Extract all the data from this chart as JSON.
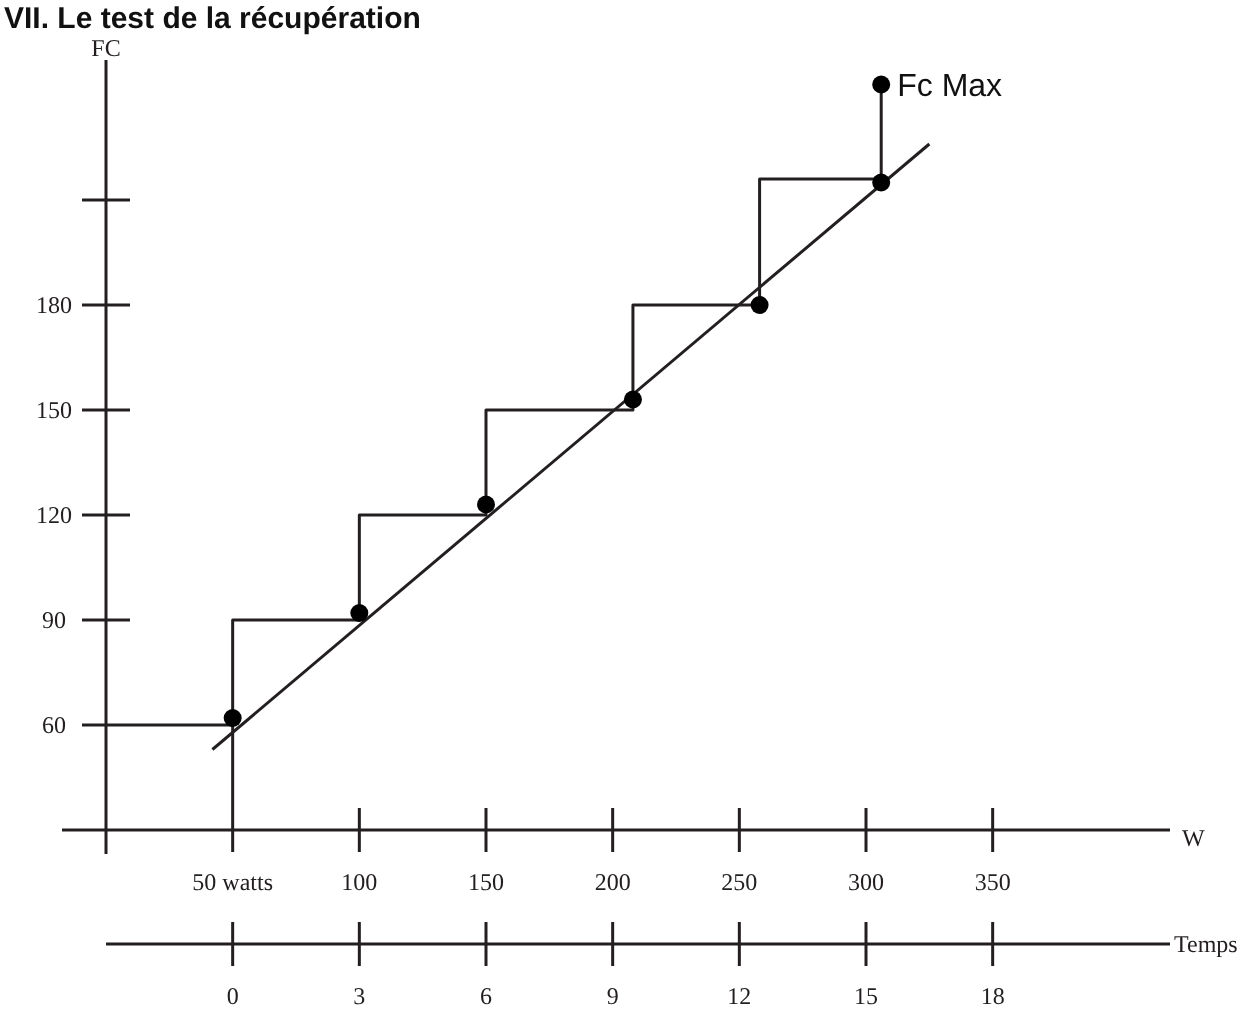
{
  "chart_data": {
    "type": "line",
    "title": "VII. Le test de la récupération",
    "xlabel": "W",
    "ylabel": "FC",
    "x2label": "Temps",
    "xlim": [
      0,
      420
    ],
    "xticks": [
      {
        "value": 50,
        "label": "50 watts"
      },
      100,
      150,
      200,
      250,
      300,
      350
    ],
    "x2lim": [
      -3,
      22.2
    ],
    "x2ticks": [
      0,
      3,
      6,
      9,
      12,
      15,
      18
    ],
    "ylim": [
      30,
      250
    ],
    "yticks": [
      60,
      90,
      120,
      150,
      180,
      {
        "value": 210,
        "label": null
      }
    ],
    "grid": false,
    "series": [
      {
        "color": "#231f20",
        "x": [
          0,
          50,
          50,
          50,
          100,
          100,
          150,
          150,
          208,
          208,
          258,
          258,
          306,
          306
        ],
        "values": [
          60,
          60,
          30,
          90,
          90,
          120,
          120,
          150,
          150,
          180,
          180,
          216,
          216,
          243
        ]
      },
      {
        "color": "#231f20",
        "x": [
          42,
          325
        ],
        "values": [
          53,
          226
        ]
      },
      {
        "type": "scatter",
        "marker": "circle",
        "color": "#000000",
        "x": [
          50,
          100,
          150,
          208,
          258,
          306,
          306
        ],
        "values": [
          62,
          92,
          123,
          153,
          180,
          215,
          243
        ]
      }
    ],
    "annotations": [
      {
        "text": "Fc Max",
        "x": 306,
        "y": 243
      }
    ]
  }
}
